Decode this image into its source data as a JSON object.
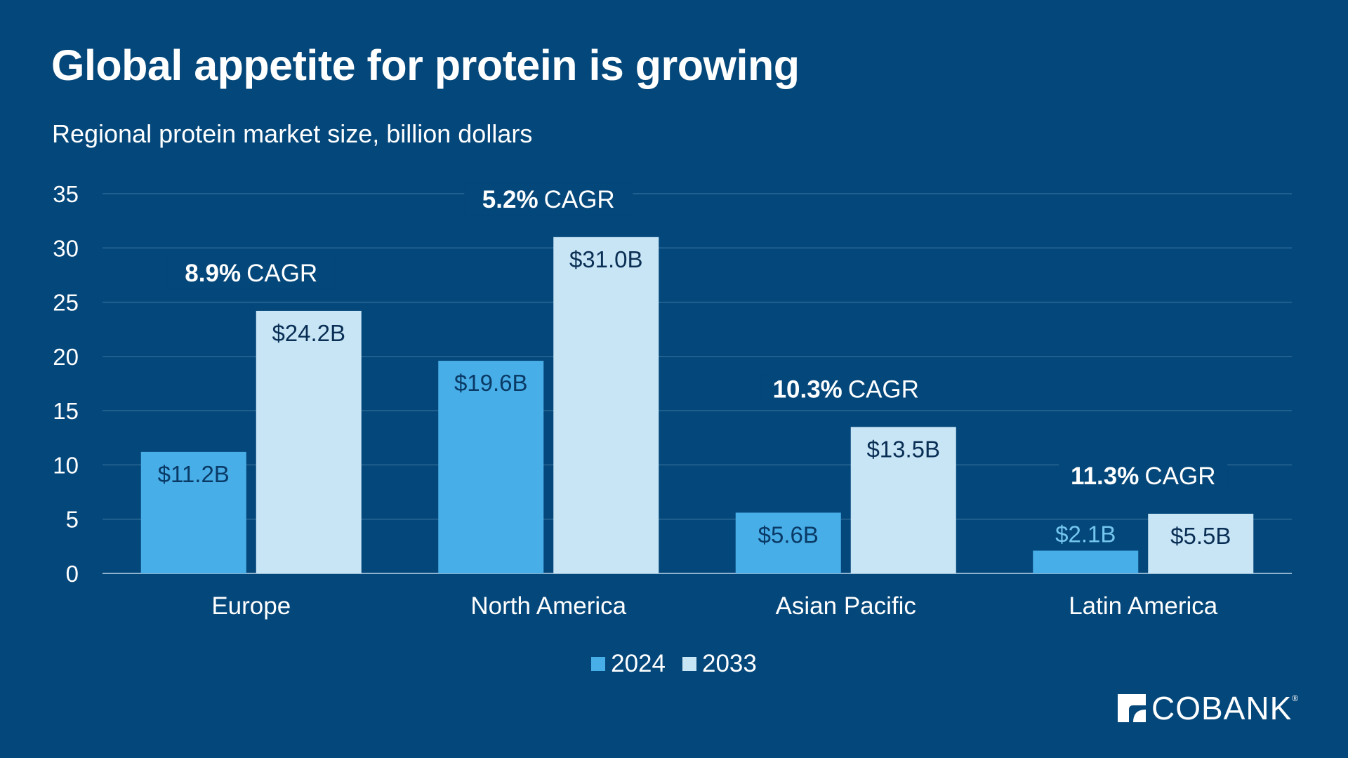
{
  "header": {
    "title": "Global appetite for protein is growing",
    "subtitle": "Regional protein market size, billion dollars"
  },
  "colors": {
    "background": "#04477a",
    "series_2024": "#48aee8",
    "series_2033": "#c8e5f6",
    "gridline": "#2a6895",
    "label_on_2024": "#0a3a66",
    "label_on_2033": "#0a2f55",
    "label_above_2024": "#74c6ef"
  },
  "chart_data": {
    "type": "bar",
    "categories": [
      "Europe",
      "North America",
      "Asian Pacific",
      "Latin America"
    ],
    "series": [
      {
        "name": "2024",
        "values": [
          11.2,
          19.6,
          5.6,
          2.1
        ],
        "labels": [
          "$11.2B",
          "$19.6B",
          "$5.6B",
          "$2.1B"
        ]
      },
      {
        "name": "2033",
        "values": [
          24.2,
          31.0,
          13.5,
          5.5
        ],
        "labels": [
          "$24.2B",
          "$31.0B",
          "$13.5B",
          "$5.5B"
        ]
      }
    ],
    "annotations": [
      {
        "rate": "8.9%",
        "suffix": "CAGR"
      },
      {
        "rate": "5.2%",
        "suffix": "CAGR"
      },
      {
        "rate": "10.3%",
        "suffix": "CAGR"
      },
      {
        "rate": "11.3%",
        "suffix": "CAGR"
      }
    ],
    "yticks": [
      0,
      5,
      10,
      15,
      20,
      25,
      30,
      35
    ],
    "ylim": [
      0,
      35
    ],
    "xlabel": "",
    "ylabel": "",
    "grid": true,
    "legend_position": "bottom-center"
  },
  "logo": {
    "text": "COBANK",
    "mark": "cobank-logo-mark"
  }
}
